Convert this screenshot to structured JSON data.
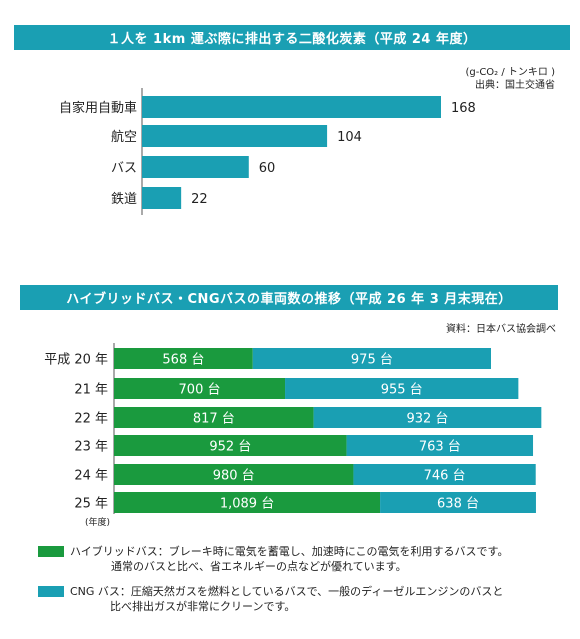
{
  "colors": {
    "title_bg": "#1a9fb3",
    "bar_blue": "#1a9fb3",
    "hybrid_green": "#1a9a3e",
    "cng_blue": "#1a9fb3"
  },
  "chart1": {
    "title": "１人を 1km 運ぶ際に排出する二酸化炭素（平成 24 年度）",
    "unit": "(g-CO₂ / トンキロ )",
    "source": "出典：国土交通省"
  },
  "chart2": {
    "title": "ハイブリッドバス・CNGバスの車両数の推移（平成 26 年 3 月末現在）",
    "source": "資料：日本バス協会調べ",
    "year_unit": "(年度)"
  },
  "legend": [
    {
      "line1": "ハイブリッドバス：ブレーキ時に電気を蓄電し、加速時にこの電気を利用するバスです。",
      "line2": "通常のバスと比べ、省エネルギーの点などが優れています。"
    },
    {
      "line1": "CNG バス：圧縮天然ガスを燃料としているバスで、一般のディーゼルエンジンのバスと",
      "line2": "比べ排出ガスが非常にクリーンです。"
    }
  ],
  "chart_data": [
    {
      "type": "bar",
      "orientation": "horizontal",
      "title": "１人を 1km 運ぶ際に排出する二酸化炭素（平成 24 年度）",
      "categories": [
        "自家用自動車",
        "航空",
        "バス",
        "鉄道"
      ],
      "values": [
        168,
        104,
        60,
        22
      ],
      "value_labels": [
        "168",
        "104",
        "60",
        "22"
      ],
      "xlim": [
        0,
        168
      ],
      "grid": false
    },
    {
      "type": "bar",
      "orientation": "horizontal",
      "stacked": true,
      "title": "ハイブリッドバス・CNGバスの車両数の推移（平成 26 年 3 月末現在）",
      "categories": [
        "平成 20 年",
        "21 年",
        "22 年",
        "23 年",
        "24 年",
        "25 年"
      ],
      "series": [
        {
          "name": "ハイブリッドバス",
          "values": [
            568,
            700,
            817,
            952,
            980,
            1089
          ],
          "labels": [
            "568 台",
            "700 台",
            "817 台",
            "952 台",
            "980 台",
            "1,089 台"
          ]
        },
        {
          "name": "CNG バス",
          "values": [
            975,
            955,
            932,
            763,
            746,
            638
          ],
          "labels": [
            "975 台",
            "955 台",
            "932 台",
            "763 台",
            "746 台",
            "638 台"
          ]
        }
      ],
      "grid": false,
      "legend": "bottom"
    }
  ]
}
